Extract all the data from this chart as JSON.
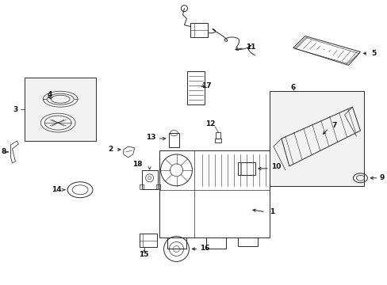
{
  "bg_color": "#ffffff",
  "line_color": "#2a2a2a",
  "label_color": "#111111",
  "fig_width": 4.89,
  "fig_height": 3.6,
  "dpi": 100,
  "label_fontsize": 6.5
}
